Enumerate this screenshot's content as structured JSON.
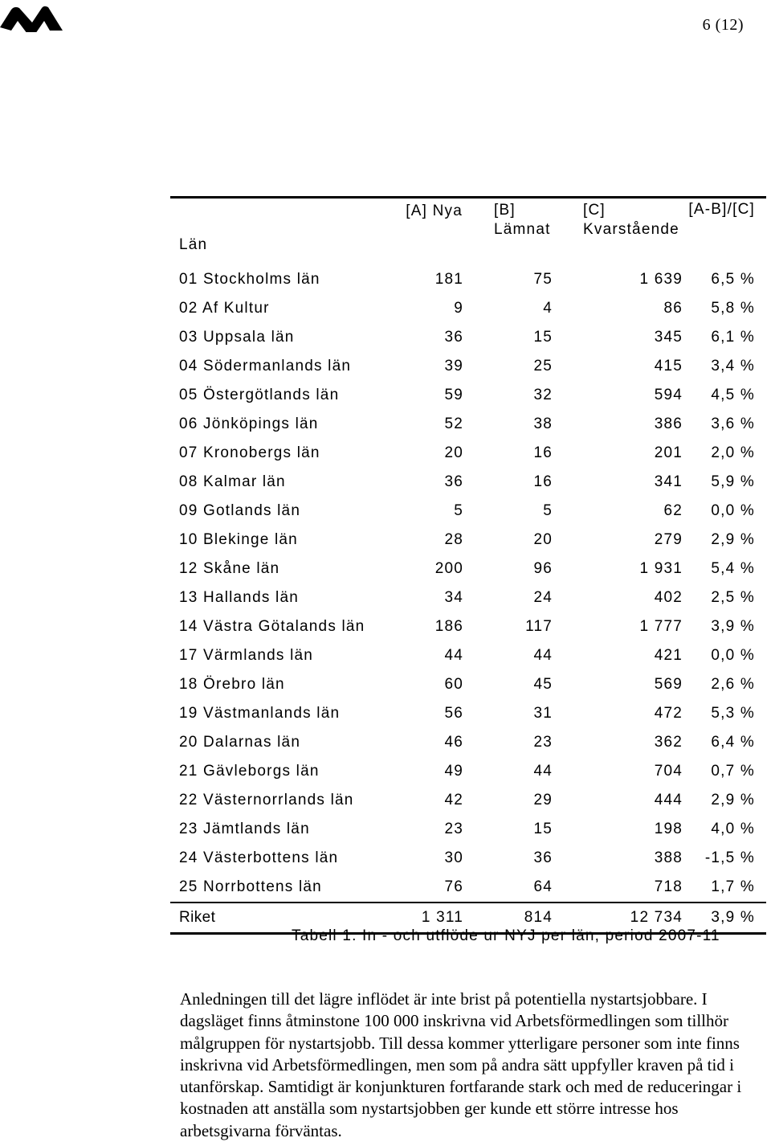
{
  "page": {
    "number": "6 (12)"
  },
  "logo": {
    "icon": "organization-logo-icon",
    "color": "#000000"
  },
  "table": {
    "headers": {
      "lan": "Län",
      "a": "[A] Nya",
      "b_line1": "[B]",
      "b_line2": "Lämnat",
      "c_line1": "[C]",
      "c_line2": "Kvarstående",
      "d": "[A-B]/[C]"
    },
    "rows": [
      {
        "name": "01 Stockholms län",
        "a": "181",
        "b": "75",
        "c": "1 639",
        "d": "6,5 %"
      },
      {
        "name": "02 Af Kultur",
        "a": "9",
        "b": "4",
        "c": "86",
        "d": "5,8 %"
      },
      {
        "name": "03 Uppsala län",
        "a": "36",
        "b": "15",
        "c": "345",
        "d": "6,1 %"
      },
      {
        "name": "04 Södermanlands län",
        "a": "39",
        "b": "25",
        "c": "415",
        "d": "3,4 %"
      },
      {
        "name": "05 Östergötlands län",
        "a": "59",
        "b": "32",
        "c": "594",
        "d": "4,5 %"
      },
      {
        "name": "06 Jönköpings län",
        "a": "52",
        "b": "38",
        "c": "386",
        "d": "3,6 %"
      },
      {
        "name": "07 Kronobergs län",
        "a": "20",
        "b": "16",
        "c": "201",
        "d": "2,0 %"
      },
      {
        "name": "08 Kalmar län",
        "a": "36",
        "b": "16",
        "c": "341",
        "d": "5,9 %"
      },
      {
        "name": "09 Gotlands län",
        "a": "5",
        "b": "5",
        "c": "62",
        "d": "0,0 %"
      },
      {
        "name": "10 Blekinge län",
        "a": "28",
        "b": "20",
        "c": "279",
        "d": "2,9 %"
      },
      {
        "name": "12 Skåne län",
        "a": "200",
        "b": "96",
        "c": "1 931",
        "d": "5,4 %"
      },
      {
        "name": "13 Hallands län",
        "a": "34",
        "b": "24",
        "c": "402",
        "d": "2,5 %"
      },
      {
        "name": "14 Västra Götalands län",
        "a": "186",
        "b": "117",
        "c": "1 777",
        "d": "3,9 %"
      },
      {
        "name": "17 Värmlands län",
        "a": "44",
        "b": "44",
        "c": "421",
        "d": "0,0 %"
      },
      {
        "name": "18 Örebro län",
        "a": "60",
        "b": "45",
        "c": "569",
        "d": "2,6 %"
      },
      {
        "name": "19 Västmanlands län",
        "a": "56",
        "b": "31",
        "c": "472",
        "d": "5,3 %"
      },
      {
        "name": "20 Dalarnas län",
        "a": "46",
        "b": "23",
        "c": "362",
        "d": "6,4 %"
      },
      {
        "name": "21 Gävleborgs län",
        "a": "49",
        "b": "44",
        "c": "704",
        "d": "0,7 %"
      },
      {
        "name": "22 Västernorrlands län",
        "a": "42",
        "b": "29",
        "c": "444",
        "d": "2,9 %"
      },
      {
        "name": "23 Jämtlands län",
        "a": "23",
        "b": "15",
        "c": "198",
        "d": "4,0 %"
      },
      {
        "name": "24 Västerbottens län",
        "a": "30",
        "b": "36",
        "c": "388",
        "d": "-1,5 %"
      },
      {
        "name": "25 Norrbottens län",
        "a": "76",
        "b": "64",
        "c": "718",
        "d": "1,7 %"
      }
    ],
    "total": {
      "name": "Riket",
      "a": "1 311",
      "b": "814",
      "c": "12 734",
      "d": "3,9 %"
    },
    "caption": "Tabell 1. In - och utflöde ur NYJ per län, period 2007-11"
  },
  "body": {
    "paragraph": "Anledningen till det lägre inflödet är inte brist på potentiella nystartsjobbare. I dagsläget finns åtminstone 100 000 inskrivna vid Arbetsförmedlingen som tillhör målgruppen för nystartsjobb. Till dessa kommer ytterligare personer som inte finns inskrivna vid Arbetsförmedlingen, men som på andra sätt uppfyller kraven på tid i utanförskap. Samtidigt är konjunkturen fortfarande stark och med de reduceringar i kostnaden att anställa som nystartsjobben ger kunde ett större intresse hos arbetsgivarna förväntas."
  }
}
